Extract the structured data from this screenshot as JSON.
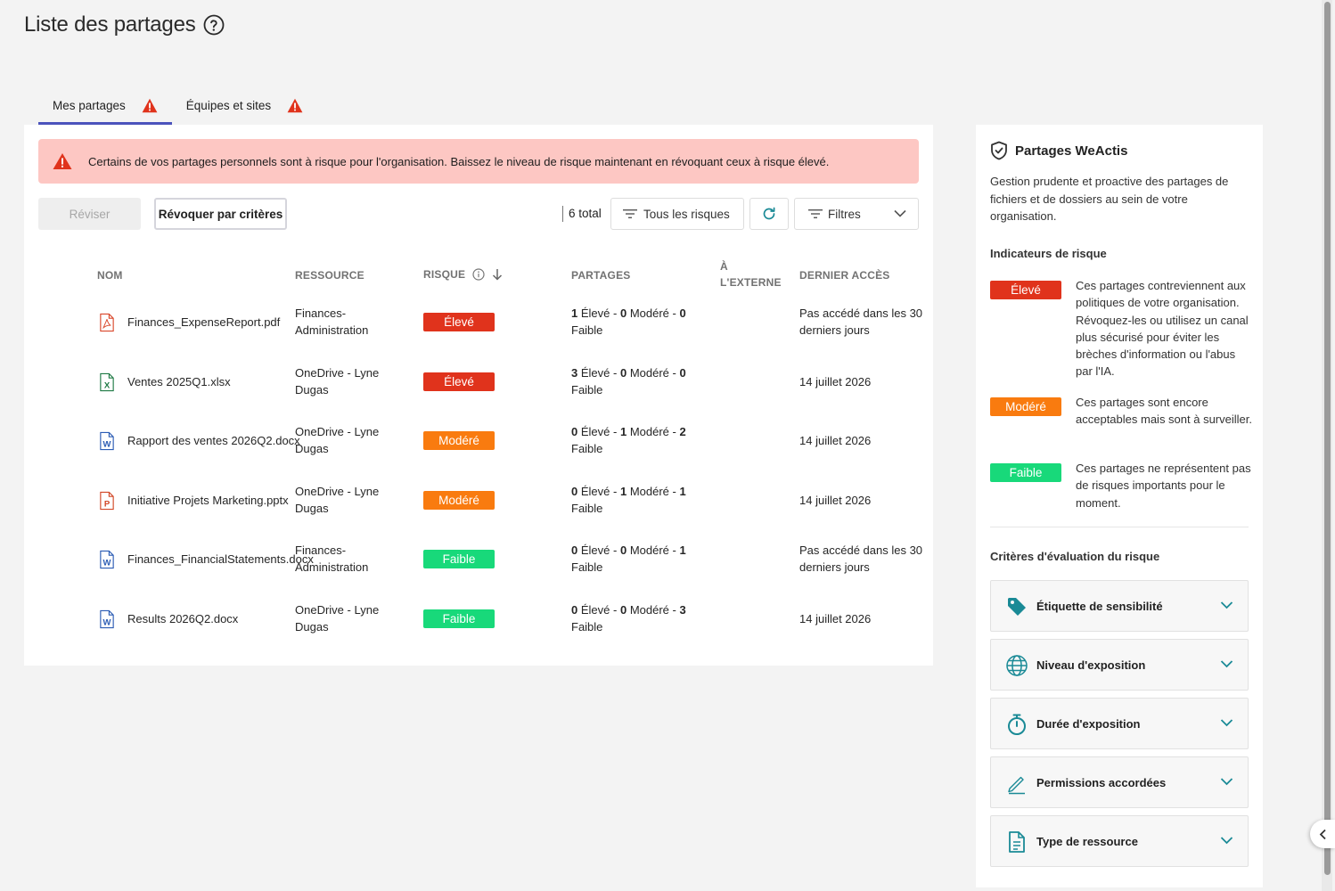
{
  "page": {
    "title": "Liste des partages"
  },
  "tabs": [
    {
      "label": "Mes partages",
      "active": true,
      "icon": "warning-icon"
    },
    {
      "label": "Équipes et sites",
      "active": false,
      "icon": "warning-icon"
    }
  ],
  "alert": {
    "text": "Certains de vos partages personnels sont à risque pour l'organisation. Baissez le niveau de risque maintenant en révoquant ceux à risque élevé."
  },
  "toolbar": {
    "review_label": "Réviser",
    "revoke_label": "Révoquer par critères",
    "total_label": "6 total",
    "risk_filter_label": "Tous les risques",
    "filters_label": "Filtres"
  },
  "table": {
    "headers": {
      "name": "NOM",
      "resource": "RESSOURCE",
      "risk": "RISQUE",
      "shares": "PARTAGES",
      "external_1": "À",
      "external_2": "L'EXTERNE",
      "last_access": "DERNIER ACCÈS"
    },
    "rows": [
      {
        "icon": "pdf-file-icon",
        "name": "Finances_ExpenseReport.pdf",
        "resource": "Finances-Administration",
        "risk": "Élevé",
        "risk_level": "high",
        "high": "1",
        "moderate": "0",
        "low": "0",
        "last": "Pas accédé dans les 30 derniers jours"
      },
      {
        "icon": "excel-file-icon",
        "name": "Ventes 2025Q1.xlsx",
        "resource": "OneDrive - Lyne Dugas",
        "risk": "Élevé",
        "risk_level": "high",
        "high": "3",
        "moderate": "0",
        "low": "0",
        "last": "14 juillet 2026"
      },
      {
        "icon": "word-file-icon",
        "name": "Rapport des ventes 2026Q2.docx",
        "resource": "OneDrive - Lyne Dugas",
        "risk": "Modéré",
        "risk_level": "moderate",
        "high": "0",
        "moderate": "1",
        "low": "2",
        "last": "14 juillet 2026"
      },
      {
        "icon": "powerpoint-file-icon",
        "name": "Initiative Projets Marketing.pptx",
        "resource": "OneDrive - Lyne Dugas",
        "risk": "Modéré",
        "risk_level": "moderate",
        "high": "0",
        "moderate": "1",
        "low": "1",
        "last": "14 juillet 2026"
      },
      {
        "icon": "word-file-icon",
        "name": "Finances_FinancialStatements.docx",
        "resource": "Finances-Administration",
        "risk": "Faible",
        "risk_level": "low",
        "high": "0",
        "moderate": "0",
        "low": "1",
        "last": "Pas accédé dans les 30 derniers jours"
      },
      {
        "icon": "word-file-icon",
        "name": "Results 2026Q2.docx",
        "resource": "OneDrive - Lyne Dugas",
        "risk": "Faible",
        "risk_level": "low",
        "high": "0",
        "moderate": "0",
        "low": "3",
        "last": "14 juillet 2026"
      }
    ],
    "share_words": {
      "high": "Élevé -",
      "moderate": "Modéré -",
      "low": "Faible"
    }
  },
  "sidebar": {
    "title": "Partages WeActis",
    "description": "Gestion prudente et proactive des partages de fichiers et de dossiers au sein de votre organisation.",
    "indicators_title": "Indicateurs de risque",
    "indicators": [
      {
        "label": "Élevé",
        "text": "Ces partages contreviennent aux politiques de votre organisation. Révoquez-les ou utilisez un canal plus sécurisé pour éviter les brèches d'information ou l'abus par l'IA."
      },
      {
        "label": "Modéré",
        "text": "Ces partages sont encore acceptables mais sont à surveiller."
      },
      {
        "label": "Faible",
        "text": "Ces partages ne représentent pas de risques importants pour le moment."
      }
    ],
    "criteria_title": "Critères d'évaluation du risque",
    "criteria": [
      {
        "label": "Étiquette de sensibilité",
        "icon": "tag-icon"
      },
      {
        "label": "Niveau d'exposition",
        "icon": "globe-icon"
      },
      {
        "label": "Durée d'exposition",
        "icon": "stopwatch-icon"
      },
      {
        "label": "Permissions accordées",
        "icon": "pen-icon"
      },
      {
        "label": "Type de ressource",
        "icon": "document-icon"
      }
    ]
  },
  "colors": {
    "high": "#e0331c",
    "moderate": "#f97b0f",
    "low": "#18d97a",
    "accent": "#4b53bc",
    "alert_bg": "#fdc7c3",
    "teal": "#1a8a96"
  }
}
